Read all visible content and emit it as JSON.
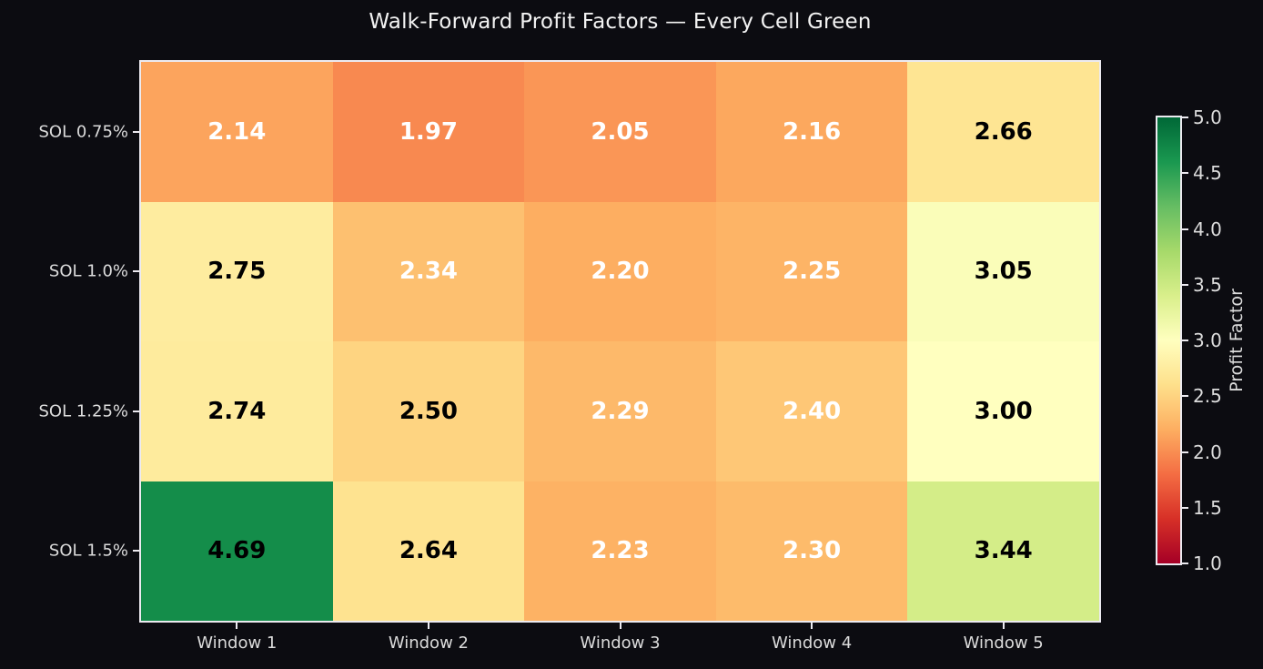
{
  "colors": {
    "background": "#0c0c11",
    "title_text": "#f3f3f3",
    "axis_text": "#dcdcdc",
    "spine": "#eceaf0",
    "annot_light": "#ffffff",
    "annot_dark": "#000000"
  },
  "chart_data": {
    "type": "heatmap",
    "title": "Walk-Forward Profit Factors — Every Cell Green",
    "rows": [
      "SOL 0.75%",
      "SOL 1.0%",
      "SOL 1.25%",
      "SOL 1.5%"
    ],
    "columns": [
      "Window 1",
      "Window 2",
      "Window 3",
      "Window 4",
      "Window 5"
    ],
    "values": [
      [
        2.14,
        1.97,
        2.05,
        2.16,
        2.66
      ],
      [
        2.75,
        2.34,
        2.2,
        2.25,
        3.05
      ],
      [
        2.74,
        2.5,
        2.29,
        2.4,
        3.0
      ],
      [
        4.69,
        2.64,
        2.23,
        2.3,
        3.44
      ]
    ],
    "cell_colors": [
      [
        "#fca45d",
        "#f88950",
        "#fa9656",
        "#fca85e",
        "#fee593"
      ],
      [
        "#feec9f",
        "#fdc070",
        "#fdae61",
        "#fdb466",
        "#fafdb9"
      ],
      [
        "#feeb9d",
        "#fed481",
        "#fdb96a",
        "#fec776",
        "#ffffbf"
      ],
      [
        "#148d4a",
        "#fee390",
        "#fdb264",
        "#fdbb6b",
        "#d4ed88"
      ]
    ],
    "cell_text_colors": [
      [
        "#ffffff",
        "#ffffff",
        "#ffffff",
        "#ffffff",
        "#000000"
      ],
      [
        "#000000",
        "#ffffff",
        "#ffffff",
        "#ffffff",
        "#000000"
      ],
      [
        "#000000",
        "#000000",
        "#ffffff",
        "#ffffff",
        "#000000"
      ],
      [
        "#000000",
        "#000000",
        "#ffffff",
        "#ffffff",
        "#000000"
      ]
    ],
    "grid": false,
    "colorbar": {
      "label": "Profit Factor",
      "min": 1.0,
      "max": 5.0,
      "ticks": [
        "5.0",
        "4.5",
        "4.0",
        "3.5",
        "3.0",
        "2.5",
        "2.0",
        "1.5",
        "1.0"
      ],
      "colormap": "RdYlGn",
      "gradient_stops": [
        "#a50026",
        "#d73027",
        "#f46d43",
        "#fdae61",
        "#fee08b",
        "#ffffbf",
        "#d9ef8b",
        "#a6d96a",
        "#66bd63",
        "#1a9850",
        "#006837"
      ],
      "position": "right"
    }
  }
}
